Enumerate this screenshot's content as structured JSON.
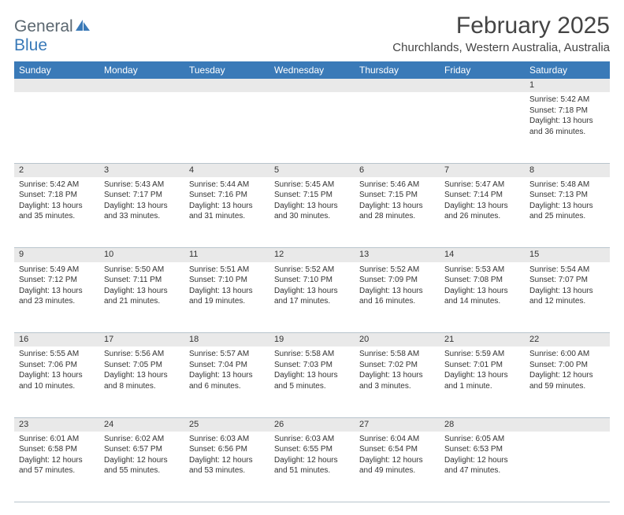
{
  "logo": {
    "general": "General",
    "blue": "Blue"
  },
  "title": "February 2025",
  "location": "Churchlands, Western Australia, Australia",
  "colors": {
    "header_bg": "#3a7ab8",
    "header_text": "#ffffff",
    "daynum_bg": "#e9e9e9",
    "body_text": "#333333",
    "grid_line": "#b8c4cc",
    "logo_gray": "#5b6770",
    "logo_blue": "#3a7ab8",
    "page_bg": "#ffffff"
  },
  "typography": {
    "title_fontsize": 30,
    "location_fontsize": 15,
    "dayheader_fontsize": 12,
    "daynum_fontsize": 11,
    "cell_fontsize": 10
  },
  "days": [
    "Sunday",
    "Monday",
    "Tuesday",
    "Wednesday",
    "Thursday",
    "Friday",
    "Saturday"
  ],
  "weeks": [
    [
      null,
      null,
      null,
      null,
      null,
      null,
      {
        "n": "1",
        "sr": "Sunrise: 5:42 AM",
        "ss": "Sunset: 7:18 PM",
        "dl": "Daylight: 13 hours and 36 minutes."
      }
    ],
    [
      {
        "n": "2",
        "sr": "Sunrise: 5:42 AM",
        "ss": "Sunset: 7:18 PM",
        "dl": "Daylight: 13 hours and 35 minutes."
      },
      {
        "n": "3",
        "sr": "Sunrise: 5:43 AM",
        "ss": "Sunset: 7:17 PM",
        "dl": "Daylight: 13 hours and 33 minutes."
      },
      {
        "n": "4",
        "sr": "Sunrise: 5:44 AM",
        "ss": "Sunset: 7:16 PM",
        "dl": "Daylight: 13 hours and 31 minutes."
      },
      {
        "n": "5",
        "sr": "Sunrise: 5:45 AM",
        "ss": "Sunset: 7:15 PM",
        "dl": "Daylight: 13 hours and 30 minutes."
      },
      {
        "n": "6",
        "sr": "Sunrise: 5:46 AM",
        "ss": "Sunset: 7:15 PM",
        "dl": "Daylight: 13 hours and 28 minutes."
      },
      {
        "n": "7",
        "sr": "Sunrise: 5:47 AM",
        "ss": "Sunset: 7:14 PM",
        "dl": "Daylight: 13 hours and 26 minutes."
      },
      {
        "n": "8",
        "sr": "Sunrise: 5:48 AM",
        "ss": "Sunset: 7:13 PM",
        "dl": "Daylight: 13 hours and 25 minutes."
      }
    ],
    [
      {
        "n": "9",
        "sr": "Sunrise: 5:49 AM",
        "ss": "Sunset: 7:12 PM",
        "dl": "Daylight: 13 hours and 23 minutes."
      },
      {
        "n": "10",
        "sr": "Sunrise: 5:50 AM",
        "ss": "Sunset: 7:11 PM",
        "dl": "Daylight: 13 hours and 21 minutes."
      },
      {
        "n": "11",
        "sr": "Sunrise: 5:51 AM",
        "ss": "Sunset: 7:10 PM",
        "dl": "Daylight: 13 hours and 19 minutes."
      },
      {
        "n": "12",
        "sr": "Sunrise: 5:52 AM",
        "ss": "Sunset: 7:10 PM",
        "dl": "Daylight: 13 hours and 17 minutes."
      },
      {
        "n": "13",
        "sr": "Sunrise: 5:52 AM",
        "ss": "Sunset: 7:09 PM",
        "dl": "Daylight: 13 hours and 16 minutes."
      },
      {
        "n": "14",
        "sr": "Sunrise: 5:53 AM",
        "ss": "Sunset: 7:08 PM",
        "dl": "Daylight: 13 hours and 14 minutes."
      },
      {
        "n": "15",
        "sr": "Sunrise: 5:54 AM",
        "ss": "Sunset: 7:07 PM",
        "dl": "Daylight: 13 hours and 12 minutes."
      }
    ],
    [
      {
        "n": "16",
        "sr": "Sunrise: 5:55 AM",
        "ss": "Sunset: 7:06 PM",
        "dl": "Daylight: 13 hours and 10 minutes."
      },
      {
        "n": "17",
        "sr": "Sunrise: 5:56 AM",
        "ss": "Sunset: 7:05 PM",
        "dl": "Daylight: 13 hours and 8 minutes."
      },
      {
        "n": "18",
        "sr": "Sunrise: 5:57 AM",
        "ss": "Sunset: 7:04 PM",
        "dl": "Daylight: 13 hours and 6 minutes."
      },
      {
        "n": "19",
        "sr": "Sunrise: 5:58 AM",
        "ss": "Sunset: 7:03 PM",
        "dl": "Daylight: 13 hours and 5 minutes."
      },
      {
        "n": "20",
        "sr": "Sunrise: 5:58 AM",
        "ss": "Sunset: 7:02 PM",
        "dl": "Daylight: 13 hours and 3 minutes."
      },
      {
        "n": "21",
        "sr": "Sunrise: 5:59 AM",
        "ss": "Sunset: 7:01 PM",
        "dl": "Daylight: 13 hours and 1 minute."
      },
      {
        "n": "22",
        "sr": "Sunrise: 6:00 AM",
        "ss": "Sunset: 7:00 PM",
        "dl": "Daylight: 12 hours and 59 minutes."
      }
    ],
    [
      {
        "n": "23",
        "sr": "Sunrise: 6:01 AM",
        "ss": "Sunset: 6:58 PM",
        "dl": "Daylight: 12 hours and 57 minutes."
      },
      {
        "n": "24",
        "sr": "Sunrise: 6:02 AM",
        "ss": "Sunset: 6:57 PM",
        "dl": "Daylight: 12 hours and 55 minutes."
      },
      {
        "n": "25",
        "sr": "Sunrise: 6:03 AM",
        "ss": "Sunset: 6:56 PM",
        "dl": "Daylight: 12 hours and 53 minutes."
      },
      {
        "n": "26",
        "sr": "Sunrise: 6:03 AM",
        "ss": "Sunset: 6:55 PM",
        "dl": "Daylight: 12 hours and 51 minutes."
      },
      {
        "n": "27",
        "sr": "Sunrise: 6:04 AM",
        "ss": "Sunset: 6:54 PM",
        "dl": "Daylight: 12 hours and 49 minutes."
      },
      {
        "n": "28",
        "sr": "Sunrise: 6:05 AM",
        "ss": "Sunset: 6:53 PM",
        "dl": "Daylight: 12 hours and 47 minutes."
      },
      null
    ]
  ]
}
